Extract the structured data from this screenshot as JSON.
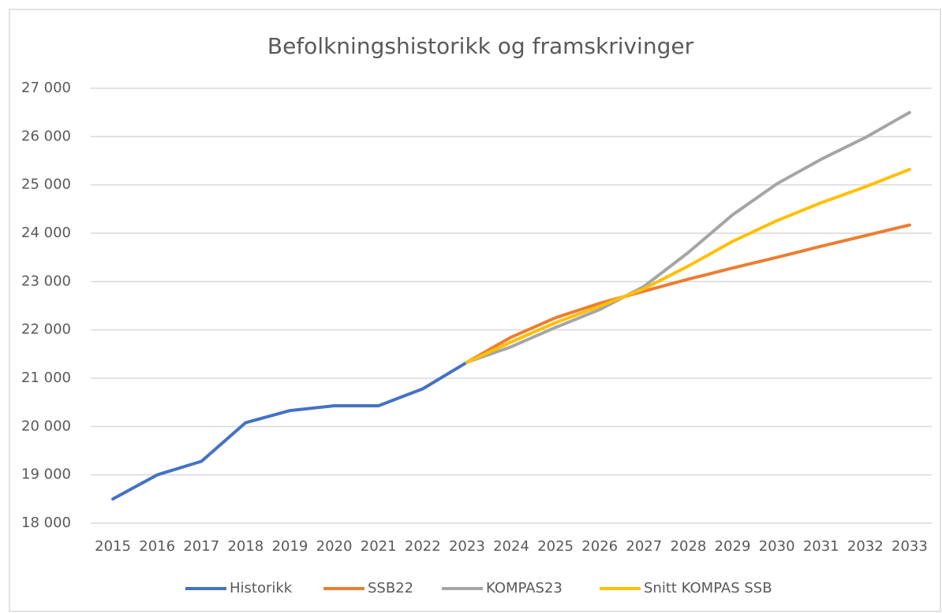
{
  "chart_data": {
    "type": "line",
    "title": "Befolkningshistorikk og framskrivinger",
    "categories": [
      "2015",
      "2016",
      "2017",
      "2018",
      "2019",
      "2020",
      "2021",
      "2022",
      "2023",
      "2024",
      "2025",
      "2026",
      "2027",
      "2028",
      "2029",
      "2030",
      "2031",
      "2032",
      "2033"
    ],
    "series": [
      {
        "name": "Historikk",
        "color": "#4472c4",
        "values": [
          18500,
          19000,
          19280,
          20080,
          20330,
          20430,
          20430,
          20780,
          21330,
          null,
          null,
          null,
          null,
          null,
          null,
          null,
          null,
          null,
          null
        ]
      },
      {
        "name": "SSB22",
        "color": "#ed7d31",
        "values": [
          null,
          null,
          null,
          null,
          null,
          null,
          null,
          null,
          21330,
          21850,
          22250,
          22550,
          22800,
          23050,
          23280,
          23500,
          23730,
          23950,
          24170
        ]
      },
      {
        "name": "KOMPAS23",
        "color": "#a5a5a5",
        "values": [
          null,
          null,
          null,
          null,
          null,
          null,
          null,
          null,
          21330,
          21650,
          22050,
          22420,
          22900,
          23600,
          24380,
          25020,
          25530,
          25980,
          26500
        ]
      },
      {
        "name": "Snitt KOMPAS SSB",
        "color": "#ffc000",
        "values": [
          null,
          null,
          null,
          null,
          null,
          null,
          null,
          null,
          21330,
          21750,
          22150,
          22490,
          22850,
          23320,
          23830,
          24260,
          24630,
          24960,
          25320
        ]
      }
    ],
    "ylim": [
      18000,
      27000
    ],
    "yticks": [
      {
        "value": 18000,
        "label": "18 000"
      },
      {
        "value": 19000,
        "label": "19 000"
      },
      {
        "value": 20000,
        "label": "20 000"
      },
      {
        "value": 21000,
        "label": "21 000"
      },
      {
        "value": 22000,
        "label": "22 000"
      },
      {
        "value": 23000,
        "label": "23 000"
      },
      {
        "value": 24000,
        "label": "24 000"
      },
      {
        "value": 25000,
        "label": "25 000"
      },
      {
        "value": 26000,
        "label": "26 000"
      },
      {
        "value": 27000,
        "label": "27 000"
      }
    ],
    "grid": true,
    "legend": "bottom"
  }
}
